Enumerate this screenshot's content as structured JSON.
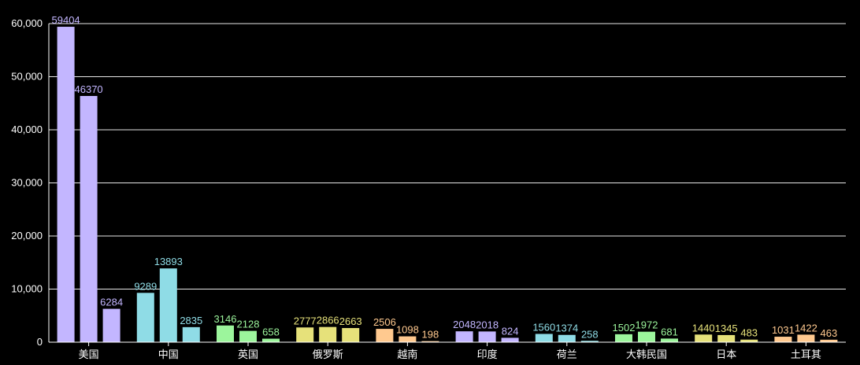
{
  "chart_data": {
    "type": "bar",
    "categories": [
      "美国",
      "中国",
      "英国",
      "俄罗斯",
      "越南",
      "印度",
      "荷兰",
      "大韩民国",
      "日本",
      "土耳其"
    ],
    "series": [
      {
        "values": [
          59404,
          9289,
          3146,
          2777,
          2506,
          2048,
          1560,
          1502,
          1440,
          1031
        ]
      },
      {
        "values": [
          46370,
          13893,
          2128,
          2866,
          1098,
          2018,
          1374,
          1972,
          1345,
          1422
        ]
      },
      {
        "values": [
          6284,
          2835,
          658,
          2663,
          198,
          824,
          258,
          681,
          483,
          463
        ]
      }
    ],
    "category_colors": [
      "#c3b6ff",
      "#8fdce6",
      "#9cf59c",
      "#e6e17a",
      "#ffc98f",
      "#c3b6ff",
      "#8fdce6",
      "#9cf59c",
      "#e6e17a",
      "#ffc98f"
    ],
    "ylim": [
      0,
      60000
    ],
    "yticks": [
      0,
      10000,
      20000,
      30000,
      40000,
      50000,
      60000
    ],
    "ytick_labels": [
      "0",
      "10,000",
      "20,000",
      "30,000",
      "40,000",
      "50,000",
      "60,000"
    ],
    "title": "",
    "xlabel": "",
    "ylabel": "",
    "grid": true,
    "legend": "none"
  }
}
